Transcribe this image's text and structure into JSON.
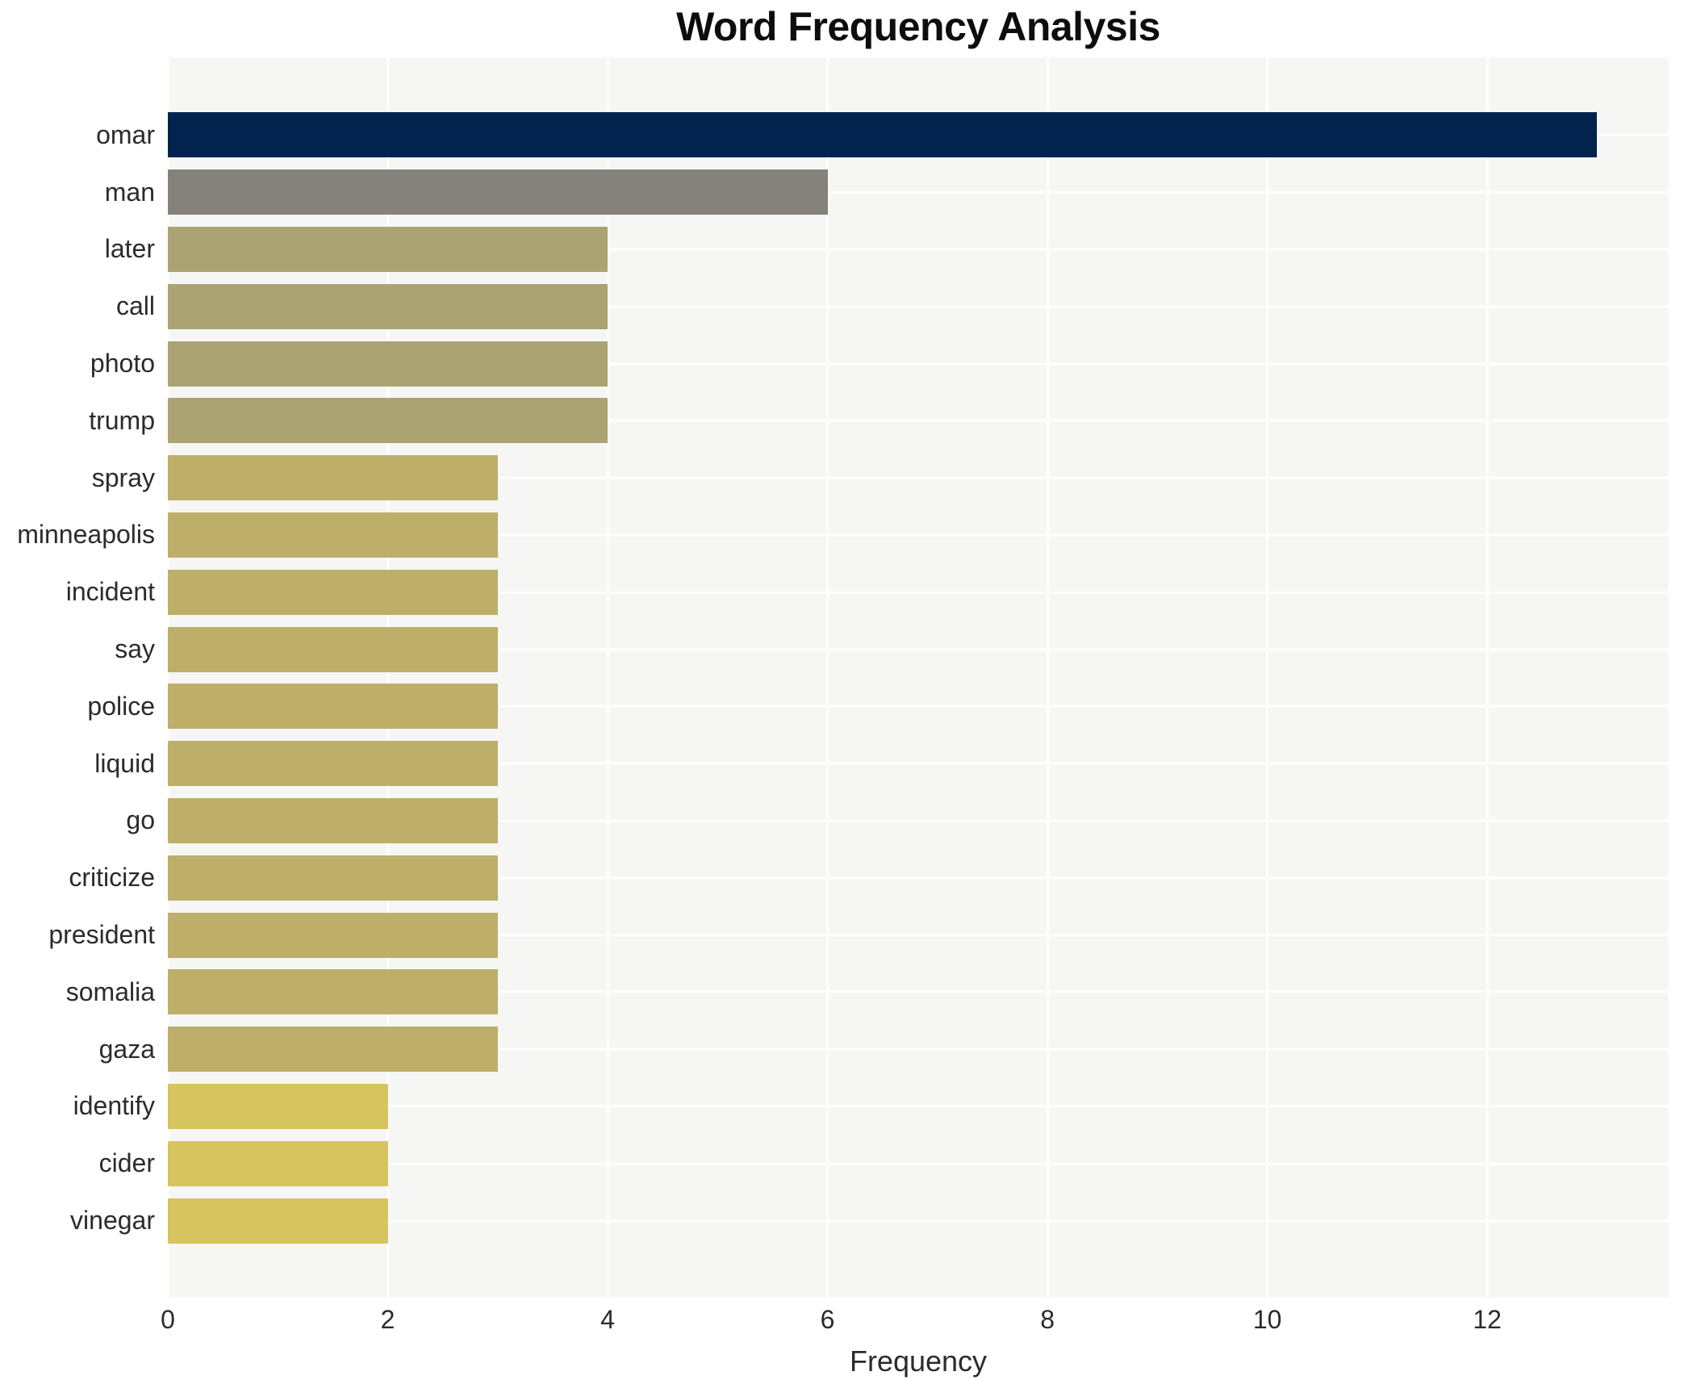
{
  "page": {
    "background": "#ffffff"
  },
  "chart_data": {
    "type": "bar",
    "orientation": "horizontal",
    "title": "Word Frequency Analysis",
    "xlabel": "Frequency",
    "ylabel": "",
    "categories": [
      "omar",
      "man",
      "later",
      "call",
      "photo",
      "trump",
      "spray",
      "minneapolis",
      "incident",
      "say",
      "police",
      "liquid",
      "go",
      "criticize",
      "president",
      "somalia",
      "gaza",
      "identify",
      "cider",
      "vinegar"
    ],
    "values": [
      13,
      6,
      4,
      4,
      4,
      4,
      3,
      3,
      3,
      3,
      3,
      3,
      3,
      3,
      3,
      3,
      3,
      2,
      2,
      2
    ],
    "bar_colors": [
      "#02234e",
      "#84827b",
      "#aba372",
      "#aba372",
      "#aba372",
      "#aba372",
      "#bdaf69",
      "#bdaf69",
      "#bdaf69",
      "#bdaf69",
      "#bdaf69",
      "#bdaf69",
      "#bdaf69",
      "#bdaf69",
      "#bdaf69",
      "#bdaf69",
      "#bdaf69",
      "#d6c45f",
      "#d6c45f",
      "#d6c45f"
    ],
    "xticks": [
      0,
      2,
      4,
      6,
      8,
      10,
      12
    ],
    "xlim": [
      0,
      13.65
    ],
    "legend": "none",
    "grid_on": true,
    "style": {
      "plot_background": "#f6f6f4",
      "grid_color": "#ffffff",
      "title_text_color": "#0d0d0d",
      "axis_text_color": "#2b2b2b"
    }
  }
}
